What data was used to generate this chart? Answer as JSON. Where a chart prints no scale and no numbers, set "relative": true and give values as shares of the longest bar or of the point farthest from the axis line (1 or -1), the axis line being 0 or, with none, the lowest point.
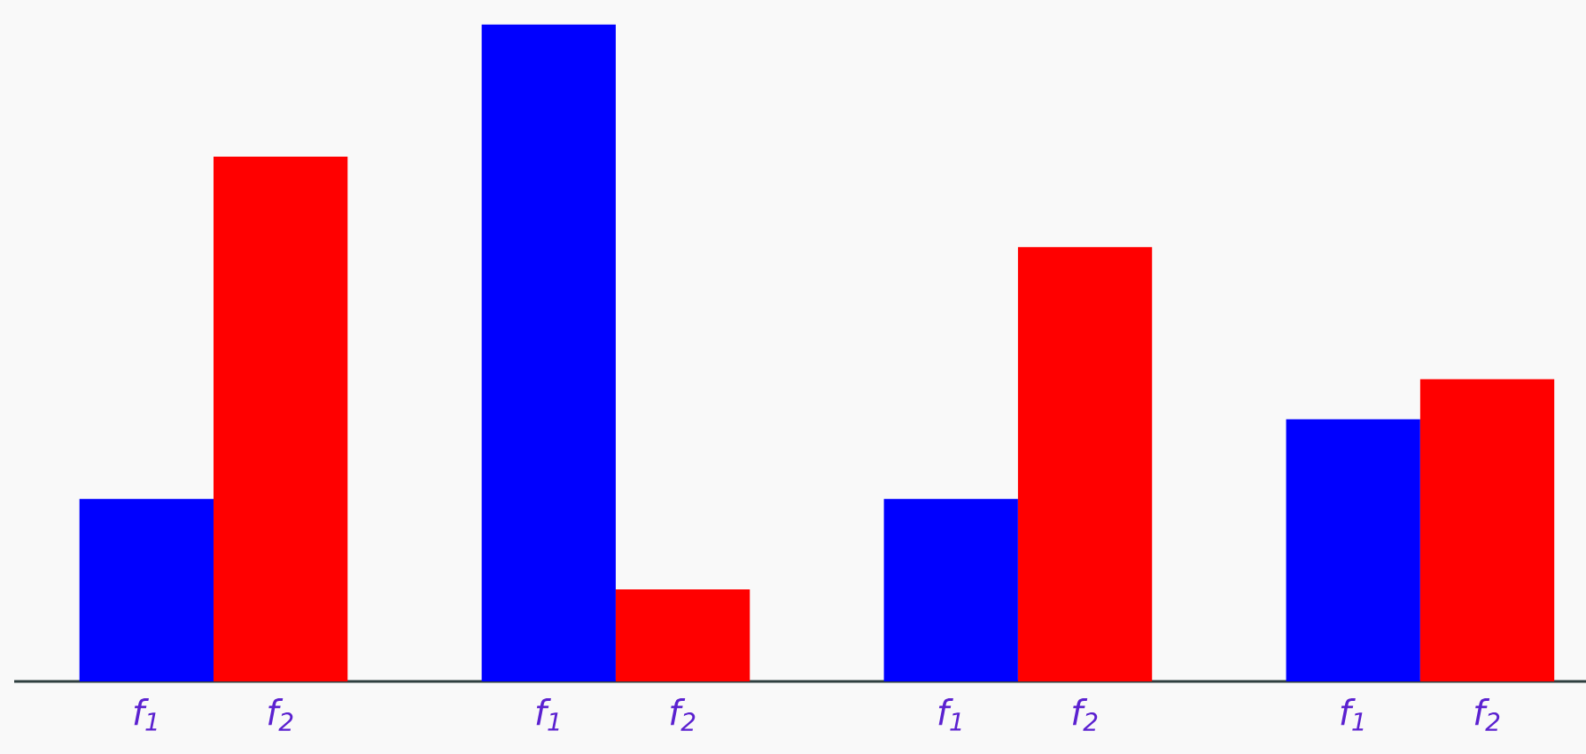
{
  "chart_data": {
    "type": "bar",
    "relative": true,
    "categories": [
      "f$_{1}$",
      "f$_{2}$",
      null,
      "f$_{1}$",
      "f$_{2}$",
      null,
      "f$_{1}$",
      "f$_{2}$",
      null,
      "f$_{1}$",
      "f$_{2}$"
    ],
    "values": [
      0.278,
      0.799,
      null,
      1,
      0.14,
      null,
      0.278,
      0.661,
      null,
      0.399,
      0.46
    ],
    "colors": [
      "#0000ff",
      "#ff0000",
      null,
      "#0000ff",
      "#ff0000",
      null,
      "#0000ff",
      "#ff0000",
      null,
      "#0000ff",
      "#ff0000"
    ]
  }
}
